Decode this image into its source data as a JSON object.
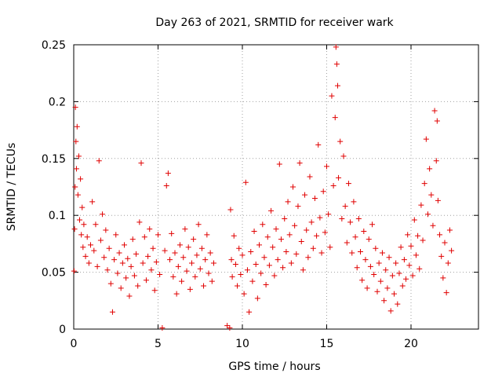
{
  "chart_data": {
    "type": "scatter",
    "title": "Day 263 of 2021, SRMTID for receiver wark",
    "xlabel": "GPS time / hours",
    "ylabel": "SRMTID / TECUs",
    "xlim": [
      0,
      24
    ],
    "ylim": [
      0,
      0.25
    ],
    "xticks": [
      0,
      5,
      10,
      15,
      20
    ],
    "xtick_labels": [
      "0",
      "5",
      "10",
      "15",
      "20"
    ],
    "yticks": [
      0,
      0.05,
      0.1,
      0.15,
      0.2,
      0.25
    ],
    "ytick_labels": [
      "0",
      "0.05",
      "0.1",
      "0.15",
      "0.2",
      "0.25"
    ],
    "grid": true,
    "marker": "+",
    "color": "#e00000",
    "series": [
      {
        "name": "SRMTID",
        "points": [
          [
            0.02,
            0.051
          ],
          [
            0.05,
            0.088
          ],
          [
            0.08,
            0.125
          ],
          [
            0.1,
            0.195
          ],
          [
            0.13,
            0.165
          ],
          [
            0.16,
            0.141
          ],
          [
            0.2,
            0.178
          ],
          [
            0.25,
            0.118
          ],
          [
            0.3,
            0.152
          ],
          [
            0.35,
            0.096
          ],
          [
            0.4,
            0.132
          ],
          [
            0.45,
            0.083
          ],
          [
            0.5,
            0.107
          ],
          [
            0.55,
            0.072
          ],
          [
            0.6,
            0.092
          ],
          [
            0.7,
            0.064
          ],
          [
            0.8,
            0.081
          ],
          [
            0.9,
            0.058
          ],
          [
            1.0,
            0.074
          ],
          [
            1.1,
            0.112
          ],
          [
            1.2,
            0.069
          ],
          [
            1.3,
            0.092
          ],
          [
            1.4,
            0.055
          ],
          [
            1.5,
            0.148
          ],
          [
            1.6,
            0.078
          ],
          [
            1.7,
            0.101
          ],
          [
            1.8,
            0.063
          ],
          [
            1.9,
            0.087
          ],
          [
            2.0,
            0.052
          ],
          [
            2.1,
            0.071
          ],
          [
            2.2,
            0.04
          ],
          [
            2.3,
            0.015
          ],
          [
            2.4,
            0.061
          ],
          [
            2.5,
            0.083
          ],
          [
            2.6,
            0.049
          ],
          [
            2.7,
            0.067
          ],
          [
            2.8,
            0.036
          ],
          [
            2.9,
            0.058
          ],
          [
            3.0,
            0.074
          ],
          [
            3.1,
            0.045
          ],
          [
            3.2,
            0.062
          ],
          [
            3.3,
            0.029
          ],
          [
            3.4,
            0.055
          ],
          [
            3.5,
            0.079
          ],
          [
            3.6,
            0.047
          ],
          [
            3.7,
            0.066
          ],
          [
            3.8,
            0.038
          ],
          [
            3.9,
            0.094
          ],
          [
            4.0,
            0.146
          ],
          [
            4.1,
            0.058
          ],
          [
            4.2,
            0.081
          ],
          [
            4.3,
            0.043
          ],
          [
            4.4,
            0.064
          ],
          [
            4.5,
            0.088
          ],
          [
            4.6,
            0.052
          ],
          [
            4.7,
            0.071
          ],
          [
            4.8,
            0.034
          ],
          [
            4.9,
            0.059
          ],
          [
            5.0,
            0.083
          ],
          [
            5.1,
            0.048
          ],
          [
            5.25,
            0.001
          ],
          [
            5.4,
            0.069
          ],
          [
            5.5,
            0.126
          ],
          [
            5.6,
            0.137
          ],
          [
            5.7,
            0.061
          ],
          [
            5.8,
            0.084
          ],
          [
            5.9,
            0.046
          ],
          [
            6.0,
            0.067
          ],
          [
            6.1,
            0.031
          ],
          [
            6.2,
            0.055
          ],
          [
            6.3,
            0.074
          ],
          [
            6.4,
            0.042
          ],
          [
            6.5,
            0.063
          ],
          [
            6.6,
            0.088
          ],
          [
            6.7,
            0.051
          ],
          [
            6.8,
            0.072
          ],
          [
            6.9,
            0.035
          ],
          [
            7.0,
            0.058
          ],
          [
            7.1,
            0.079
          ],
          [
            7.2,
            0.046
          ],
          [
            7.3,
            0.065
          ],
          [
            7.4,
            0.092
          ],
          [
            7.5,
            0.053
          ],
          [
            7.6,
            0.071
          ],
          [
            7.7,
            0.038
          ],
          [
            7.8,
            0.061
          ],
          [
            7.9,
            0.083
          ],
          [
            8.0,
            0.049
          ],
          [
            8.1,
            0.067
          ],
          [
            8.2,
            0.042
          ],
          [
            8.3,
            0.058
          ],
          [
            9.1,
            0.003
          ],
          [
            9.25,
            0.001
          ],
          [
            9.3,
            0.105
          ],
          [
            9.35,
            0.061
          ],
          [
            9.4,
            0.046
          ],
          [
            9.5,
            0.082
          ],
          [
            9.6,
            0.057
          ],
          [
            9.7,
            0.038
          ],
          [
            9.8,
            0.071
          ],
          [
            9.9,
            0.048
          ],
          [
            10.0,
            0.065
          ],
          [
            10.1,
            0.031
          ],
          [
            10.2,
            0.129
          ],
          [
            10.3,
            0.052
          ],
          [
            10.4,
            0.015
          ],
          [
            10.5,
            0.068
          ],
          [
            10.6,
            0.042
          ],
          [
            10.7,
            0.086
          ],
          [
            10.8,
            0.057
          ],
          [
            10.9,
            0.027
          ],
          [
            11.0,
            0.074
          ],
          [
            11.1,
            0.049
          ],
          [
            11.2,
            0.092
          ],
          [
            11.3,
            0.063
          ],
          [
            11.4,
            0.039
          ],
          [
            11.5,
            0.081
          ],
          [
            11.6,
            0.056
          ],
          [
            11.7,
            0.104
          ],
          [
            11.8,
            0.072
          ],
          [
            11.9,
            0.047
          ],
          [
            12.0,
            0.088
          ],
          [
            12.1,
            0.061
          ],
          [
            12.2,
            0.145
          ],
          [
            12.3,
            0.079
          ],
          [
            12.4,
            0.054
          ],
          [
            12.5,
            0.097
          ],
          [
            12.6,
            0.068
          ],
          [
            12.7,
            0.112
          ],
          [
            12.8,
            0.083
          ],
          [
            12.9,
            0.058
          ],
          [
            13.0,
            0.125
          ],
          [
            13.1,
            0.091
          ],
          [
            13.2,
            0.066
          ],
          [
            13.3,
            0.108
          ],
          [
            13.4,
            0.146
          ],
          [
            13.5,
            0.077
          ],
          [
            13.6,
            0.052
          ],
          [
            13.7,
            0.118
          ],
          [
            13.8,
            0.087
          ],
          [
            13.9,
            0.063
          ],
          [
            14.0,
            0.134
          ],
          [
            14.1,
            0.094
          ],
          [
            14.2,
            0.071
          ],
          [
            14.3,
            0.115
          ],
          [
            14.4,
            0.082
          ],
          [
            14.5,
            0.162
          ],
          [
            14.6,
            0.098
          ],
          [
            14.7,
            0.067
          ],
          [
            14.8,
            0.121
          ],
          [
            14.9,
            0.085
          ],
          [
            15.0,
            0.143
          ],
          [
            15.1,
            0.101
          ],
          [
            15.2,
            0.072
          ],
          [
            15.3,
            0.205
          ],
          [
            15.4,
            0.126
          ],
          [
            15.5,
            0.186
          ],
          [
            15.55,
            0.248
          ],
          [
            15.6,
            0.233
          ],
          [
            15.65,
            0.214
          ],
          [
            15.7,
            0.133
          ],
          [
            15.8,
            0.165
          ],
          [
            15.9,
            0.097
          ],
          [
            16.0,
            0.152
          ],
          [
            16.1,
            0.108
          ],
          [
            16.2,
            0.076
          ],
          [
            16.3,
            0.128
          ],
          [
            16.4,
            0.094
          ],
          [
            16.5,
            0.067
          ],
          [
            16.6,
            0.112
          ],
          [
            16.7,
            0.081
          ],
          [
            16.8,
            0.054
          ],
          [
            16.9,
            0.097
          ],
          [
            17.0,
            0.068
          ],
          [
            17.1,
            0.043
          ],
          [
            17.2,
            0.086
          ],
          [
            17.3,
            0.061
          ],
          [
            17.4,
            0.036
          ],
          [
            17.5,
            0.079
          ],
          [
            17.6,
            0.055
          ],
          [
            17.7,
            0.092
          ],
          [
            17.8,
            0.048
          ],
          [
            17.9,
            0.071
          ],
          [
            18.0,
            0.033
          ],
          [
            18.1,
            0.058
          ],
          [
            18.2,
            0.042
          ],
          [
            18.3,
            0.067
          ],
          [
            18.4,
            0.025
          ],
          [
            18.5,
            0.052
          ],
          [
            18.6,
            0.036
          ],
          [
            18.7,
            0.063
          ],
          [
            18.8,
            0.016
          ],
          [
            18.9,
            0.047
          ],
          [
            19.0,
            0.031
          ],
          [
            19.1,
            0.058
          ],
          [
            19.2,
            0.022
          ],
          [
            19.3,
            0.049
          ],
          [
            19.4,
            0.072
          ],
          [
            19.5,
            0.038
          ],
          [
            19.6,
            0.061
          ],
          [
            19.7,
            0.044
          ],
          [
            19.8,
            0.083
          ],
          [
            19.9,
            0.056
          ],
          [
            20.0,
            0.073
          ],
          [
            20.1,
            0.047
          ],
          [
            20.2,
            0.096
          ],
          [
            20.3,
            0.065
          ],
          [
            20.4,
            0.082
          ],
          [
            20.5,
            0.053
          ],
          [
            20.6,
            0.109
          ],
          [
            20.7,
            0.078
          ],
          [
            20.8,
            0.128
          ],
          [
            20.9,
            0.167
          ],
          [
            21.0,
            0.101
          ],
          [
            21.1,
            0.141
          ],
          [
            21.2,
            0.118
          ],
          [
            21.3,
            0.091
          ],
          [
            21.4,
            0.192
          ],
          [
            21.5,
            0.148
          ],
          [
            21.55,
            0.183
          ],
          [
            21.6,
            0.113
          ],
          [
            21.7,
            0.083
          ],
          [
            21.8,
            0.064
          ],
          [
            21.9,
            0.045
          ],
          [
            22.0,
            0.076
          ],
          [
            22.1,
            0.032
          ],
          [
            22.2,
            0.058
          ],
          [
            22.3,
            0.087
          ],
          [
            22.4,
            0.069
          ]
        ]
      }
    ]
  }
}
